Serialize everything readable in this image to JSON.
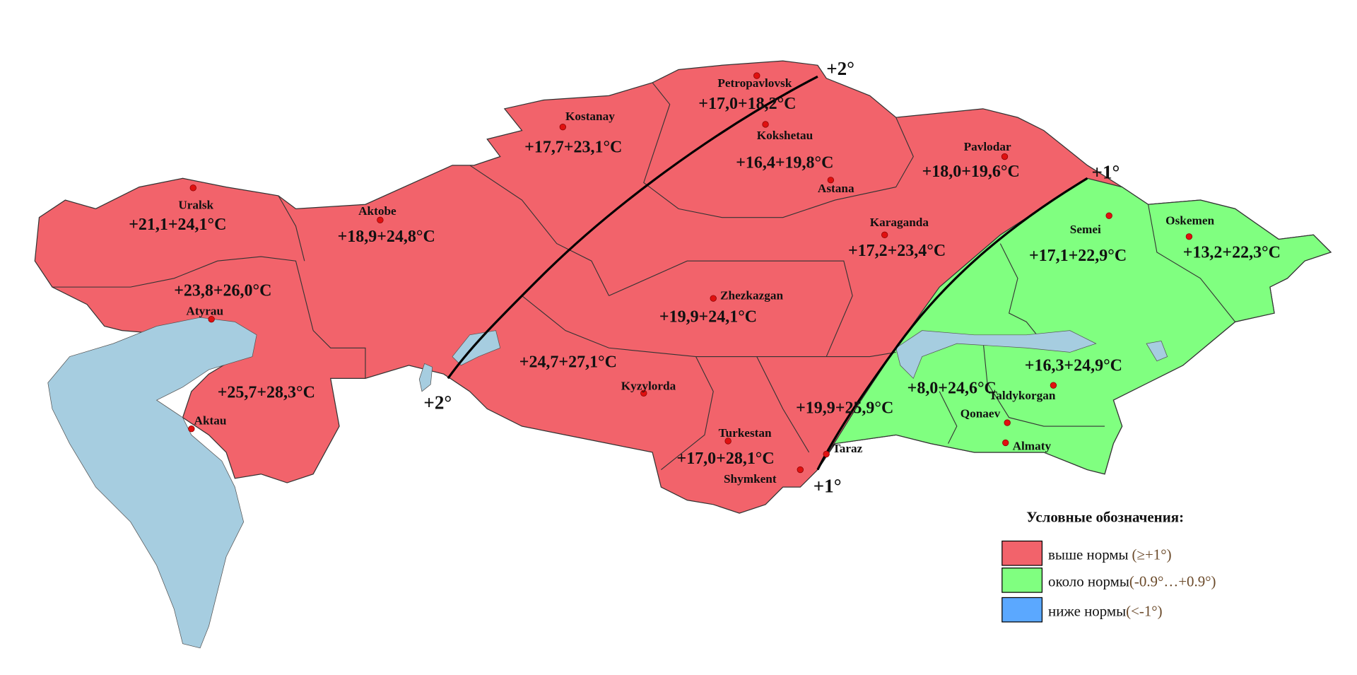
{
  "colors": {
    "above_norm": "#F2636B",
    "near_norm": "#80FF80",
    "below_norm": "#5BA8FF",
    "water": "#A6CDE0"
  },
  "isolines": [
    {
      "label": "+2°"
    },
    {
      "label": "+1°"
    }
  ],
  "cities": [
    {
      "name": "Petropavlovsk",
      "temp": "+17,0+18,2°C"
    },
    {
      "name": "Kostanay",
      "temp": "+17,7+23,1°C"
    },
    {
      "name": "Kokshetau",
      "temp": "+16,4+19,8°C"
    },
    {
      "name": "Astana",
      "temp": ""
    },
    {
      "name": "Pavlodar",
      "temp": "+18,0+19,6°C"
    },
    {
      "name": "Uralsk",
      "temp": "+21,1+24,1°C"
    },
    {
      "name": "Aktobe",
      "temp": "+18,9+24,8°C"
    },
    {
      "name": "Karaganda",
      "temp": "+17,2+23,4°C"
    },
    {
      "name": "Semei",
      "temp": "+17,1+22,9°C"
    },
    {
      "name": "Oskemen",
      "temp": "+13,2+22,3°C"
    },
    {
      "name": "Zhezkazgan",
      "temp": "+19,9+24,1°C"
    },
    {
      "name": "Atyrau",
      "temp": "+23,8+26,0°C"
    },
    {
      "name": "Kyzylorda",
      "temp": "+24,7+27,1°C"
    },
    {
      "name": "Aktau",
      "temp": "+25,7+28,3°C"
    },
    {
      "name": "Turkestan",
      "temp": "+17,0+28,1°C"
    },
    {
      "name": "Shymkent",
      "temp": ""
    },
    {
      "name": "Taraz",
      "temp": "+19,9+25,9°C"
    },
    {
      "name": "Taldykorgan",
      "temp": "+16,3+24,9°C"
    },
    {
      "name": "Qonaev",
      "temp": "+8,0+24,6°C"
    },
    {
      "name": "Almaty",
      "temp": ""
    }
  ],
  "legend": {
    "title": "Условные обозначения:",
    "items": [
      {
        "label": "выше нормы",
        "range": "(≥+1°)"
      },
      {
        "label": "около нормы",
        "range": "(-0.9°…+0.9°)"
      },
      {
        "label": "ниже нормы",
        "range": "(<-1°)"
      }
    ]
  }
}
